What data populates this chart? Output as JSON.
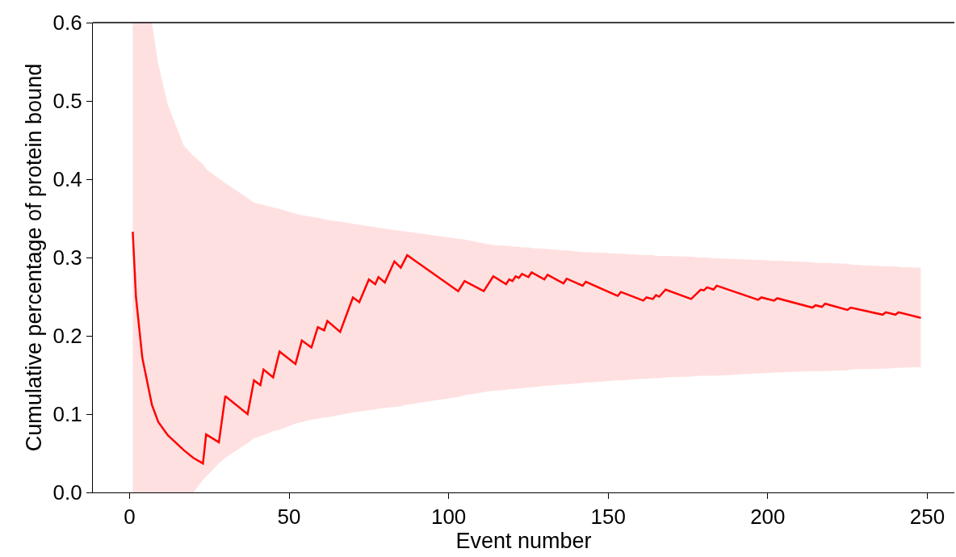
{
  "chart_data": {
    "type": "line",
    "xlabel": "Event number",
    "ylabel": "Cumulative percentage of protein bound",
    "xlim": [
      -11.5,
      258.5
    ],
    "xticks": [
      0,
      50,
      100,
      150,
      200,
      250
    ],
    "ylim": [
      0,
      0.6
    ],
    "yticks": [
      {
        "value": 0,
        "label": "0.0"
      },
      0.1,
      0.2,
      0.3,
      0.4,
      0.5,
      0.6
    ],
    "grid": false,
    "marker": "none",
    "line_style": "solid",
    "series": [
      {
        "color": "#ff0000",
        "x": [
          1,
          2,
          4,
          7,
          9,
          12,
          17,
          20,
          23,
          24,
          28,
          30,
          37,
          39,
          41,
          42,
          45,
          47,
          52,
          54,
          57,
          59,
          61,
          62,
          66,
          70,
          72,
          75,
          77,
          78,
          80,
          83,
          85,
          87,
          103,
          105,
          111,
          114,
          118,
          119,
          120,
          121,
          122,
          123,
          125,
          126,
          130,
          131,
          136,
          137,
          142,
          143,
          153,
          154,
          161,
          162,
          164,
          165,
          166,
          168,
          176,
          179,
          180,
          181,
          183,
          184,
          197,
          198,
          202,
          203,
          214,
          215,
          217,
          218,
          225,
          226,
          236,
          237,
          240,
          241,
          248
        ],
        "values": [
          0.333,
          0.25,
          0.172,
          0.112,
          0.09,
          0.073,
          0.054,
          0.044,
          0.037,
          0.074,
          0.064,
          0.123,
          0.1,
          0.143,
          0.137,
          0.157,
          0.147,
          0.18,
          0.164,
          0.194,
          0.185,
          0.211,
          0.207,
          0.219,
          0.205,
          0.249,
          0.243,
          0.272,
          0.266,
          0.275,
          0.268,
          0.295,
          0.287,
          0.303,
          0.257,
          0.27,
          0.257,
          0.276,
          0.266,
          0.272,
          0.27,
          0.276,
          0.274,
          0.279,
          0.275,
          0.281,
          0.272,
          0.278,
          0.267,
          0.273,
          0.264,
          0.269,
          0.251,
          0.256,
          0.245,
          0.249,
          0.247,
          0.252,
          0.25,
          0.259,
          0.247,
          0.259,
          0.258,
          0.262,
          0.259,
          0.264,
          0.246,
          0.249,
          0.245,
          0.248,
          0.236,
          0.239,
          0.237,
          0.241,
          0.233,
          0.236,
          0.227,
          0.23,
          0.227,
          0.23,
          0.223
        ],
        "upper": [
          0.6,
          0.6,
          0.6,
          0.6,
          0.547,
          0.495,
          0.443,
          0.43,
          0.419,
          0.413,
          0.401,
          0.395,
          0.376,
          0.37,
          0.368,
          0.367,
          0.364,
          0.362,
          0.356,
          0.354,
          0.352,
          0.351,
          0.349,
          0.348,
          0.346,
          0.343,
          0.342,
          0.34,
          0.339,
          0.338,
          0.337,
          0.335,
          0.334,
          0.333,
          0.324,
          0.323,
          0.318,
          0.316,
          0.315,
          0.315,
          0.314,
          0.314,
          0.314,
          0.313,
          0.313,
          0.312,
          0.311,
          0.311,
          0.309,
          0.309,
          0.307,
          0.307,
          0.305,
          0.305,
          0.303,
          0.303,
          0.303,
          0.302,
          0.302,
          0.302,
          0.301,
          0.3,
          0.3,
          0.3,
          0.299,
          0.299,
          0.297,
          0.297,
          0.296,
          0.296,
          0.294,
          0.293,
          0.293,
          0.293,
          0.292,
          0.291,
          0.289,
          0.289,
          0.289,
          0.288,
          0.287
        ],
        "lower": [
          0,
          0,
          0,
          0,
          0,
          0,
          0,
          0,
          0.016,
          0.02,
          0.037,
          0.044,
          0.063,
          0.069,
          0.072,
          0.073,
          0.078,
          0.08,
          0.088,
          0.09,
          0.093,
          0.094,
          0.096,
          0.096,
          0.099,
          0.102,
          0.103,
          0.105,
          0.106,
          0.107,
          0.108,
          0.109,
          0.11,
          0.112,
          0.122,
          0.124,
          0.128,
          0.13,
          0.131,
          0.132,
          0.132,
          0.132,
          0.133,
          0.133,
          0.134,
          0.134,
          0.136,
          0.136,
          0.138,
          0.138,
          0.14,
          0.14,
          0.143,
          0.143,
          0.145,
          0.145,
          0.146,
          0.146,
          0.146,
          0.147,
          0.148,
          0.149,
          0.149,
          0.149,
          0.149,
          0.149,
          0.152,
          0.152,
          0.153,
          0.153,
          0.155,
          0.155,
          0.155,
          0.155,
          0.156,
          0.157,
          0.158,
          0.158,
          0.159,
          0.159,
          0.16
        ]
      }
    ]
  }
}
